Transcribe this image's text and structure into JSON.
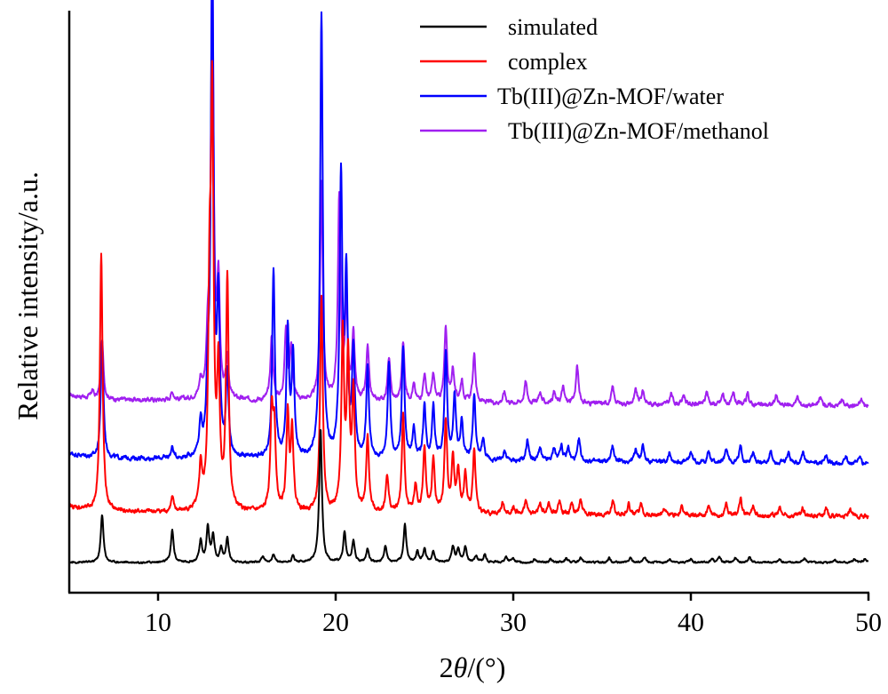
{
  "chart_data": {
    "type": "line",
    "title": "",
    "xlabel_prefix": "2",
    "xlabel_symbol": "θ",
    "xlabel_suffix": "/(°)",
    "ylabel": "Relative intensity/a.u.",
    "xlim": [
      5,
      50
    ],
    "ylim": [
      0,
      100
    ],
    "xticks": [
      10,
      20,
      30,
      40,
      50
    ],
    "grid": false,
    "legend_position": "top-right",
    "peak_width": 0.09,
    "series": [
      {
        "name": "simulated",
        "color": "#000000",
        "baseline": 0,
        "decay": 0,
        "noise": 0.25,
        "peaks": [
          [
            6.85,
            9.0
          ],
          [
            10.8,
            6.0
          ],
          [
            12.4,
            4.0
          ],
          [
            12.8,
            6.5
          ],
          [
            13.1,
            5.0
          ],
          [
            13.55,
            2.5
          ],
          [
            13.9,
            4.5
          ],
          [
            15.9,
            1.2
          ],
          [
            16.5,
            1.5
          ],
          [
            17.6,
            1.2
          ],
          [
            19.15,
            25.0
          ],
          [
            20.5,
            5.5
          ],
          [
            21.0,
            4.0
          ],
          [
            21.8,
            2.5
          ],
          [
            22.8,
            3.0
          ],
          [
            23.9,
            7.0
          ],
          [
            24.6,
            2.0
          ],
          [
            25.0,
            2.5
          ],
          [
            25.5,
            2.0
          ],
          [
            26.6,
            3.0
          ],
          [
            26.9,
            2.5
          ],
          [
            27.3,
            3.0
          ],
          [
            27.9,
            1.2
          ],
          [
            28.4,
            1.5
          ],
          [
            29.6,
            1.0
          ],
          [
            30.0,
            0.8
          ],
          [
            31.2,
            0.6
          ],
          [
            32.1,
            0.6
          ],
          [
            33.0,
            0.8
          ],
          [
            33.8,
            1.0
          ],
          [
            35.4,
            0.8
          ],
          [
            36.6,
            0.8
          ],
          [
            37.4,
            0.8
          ],
          [
            38.8,
            0.6
          ],
          [
            40.0,
            0.6
          ],
          [
            41.2,
            0.8
          ],
          [
            41.6,
            1.0
          ],
          [
            42.5,
            0.8
          ],
          [
            43.3,
            1.0
          ],
          [
            45.0,
            0.6
          ],
          [
            46.4,
            0.8
          ],
          [
            48.1,
            0.6
          ],
          [
            49.2,
            0.6
          ],
          [
            49.8,
            0.6
          ]
        ]
      },
      {
        "name": "complex",
        "color": "#ff0000",
        "baseline": 9.5,
        "decay": 0.9,
        "noise": 0.6,
        "peaks": [
          [
            6.8,
            48.0
          ],
          [
            10.8,
            2.5
          ],
          [
            12.4,
            8.0
          ],
          [
            12.9,
            35.0
          ],
          [
            13.05,
            73.0
          ],
          [
            13.4,
            25.0
          ],
          [
            13.9,
            43.0
          ],
          [
            16.4,
            18.0
          ],
          [
            16.55,
            14.0
          ],
          [
            17.3,
            18.0
          ],
          [
            17.55,
            15.0
          ],
          [
            19.2,
            40.0
          ],
          [
            20.4,
            33.0
          ],
          [
            20.7,
            28.0
          ],
          [
            21.0,
            22.0
          ],
          [
            21.8,
            14.0
          ],
          [
            22.9,
            7.0
          ],
          [
            23.8,
            18.0
          ],
          [
            24.5,
            5.0
          ],
          [
            25.0,
            12.0
          ],
          [
            25.5,
            10.0
          ],
          [
            26.2,
            17.0
          ],
          [
            26.6,
            10.0
          ],
          [
            26.9,
            8.0
          ],
          [
            27.3,
            7.0
          ],
          [
            27.8,
            12.0
          ],
          [
            29.4,
            2.0
          ],
          [
            30.0,
            1.5
          ],
          [
            30.7,
            2.5
          ],
          [
            31.5,
            2.0
          ],
          [
            32.0,
            2.0
          ],
          [
            32.6,
            2.5
          ],
          [
            33.3,
            2.0
          ],
          [
            33.8,
            3.0
          ],
          [
            35.6,
            2.5
          ],
          [
            36.5,
            2.0
          ],
          [
            37.2,
            2.0
          ],
          [
            38.5,
            1.5
          ],
          [
            39.5,
            1.5
          ],
          [
            41.0,
            1.5
          ],
          [
            42.0,
            2.0
          ],
          [
            42.8,
            3.0
          ],
          [
            43.5,
            2.0
          ],
          [
            45.0,
            1.5
          ],
          [
            46.3,
            1.5
          ],
          [
            47.6,
            1.5
          ],
          [
            49.0,
            1.2
          ]
        ]
      },
      {
        "name": "Tb(III)@Zn-MOF/water",
        "color": "#0000ff",
        "baseline": 19.5,
        "decay": 1.0,
        "noise": 0.6,
        "peaks": [
          [
            6.85,
            22.0
          ],
          [
            10.8,
            2.0
          ],
          [
            12.4,
            6.0
          ],
          [
            12.8,
            12.0
          ],
          [
            13.05,
            96.0
          ],
          [
            13.4,
            28.0
          ],
          [
            13.9,
            15.0
          ],
          [
            16.5,
            35.0
          ],
          [
            17.3,
            24.0
          ],
          [
            17.6,
            19.0
          ],
          [
            19.2,
            83.0
          ],
          [
            20.3,
            52.0
          ],
          [
            20.6,
            33.0
          ],
          [
            21.0,
            20.0
          ],
          [
            21.8,
            17.0
          ],
          [
            23.0,
            18.0
          ],
          [
            23.8,
            21.0
          ],
          [
            24.4,
            6.0
          ],
          [
            25.0,
            10.0
          ],
          [
            25.5,
            10.0
          ],
          [
            26.2,
            20.0
          ],
          [
            26.7,
            12.0
          ],
          [
            27.1,
            7.0
          ],
          [
            27.8,
            12.0
          ],
          [
            28.3,
            4.0
          ],
          [
            29.5,
            2.0
          ],
          [
            30.8,
            4.0
          ],
          [
            31.5,
            2.5
          ],
          [
            32.3,
            2.5
          ],
          [
            32.7,
            3.0
          ],
          [
            33.1,
            2.5
          ],
          [
            33.7,
            4.0
          ],
          [
            35.6,
            3.0
          ],
          [
            36.9,
            2.5
          ],
          [
            37.3,
            3.0
          ],
          [
            38.8,
            2.0
          ],
          [
            40.0,
            2.0
          ],
          [
            41.0,
            2.0
          ],
          [
            42.0,
            2.5
          ],
          [
            42.8,
            3.0
          ],
          [
            43.5,
            2.0
          ],
          [
            44.5,
            2.0
          ],
          [
            45.5,
            2.0
          ],
          [
            46.3,
            2.0
          ],
          [
            47.6,
            1.5
          ],
          [
            48.7,
            1.5
          ],
          [
            49.5,
            1.2
          ]
        ]
      },
      {
        "name": "Tb(III)@Zn-MOF/methanol",
        "color": "#a020f0",
        "baseline": 30.5,
        "decay": 1.2,
        "noise": 0.6,
        "peaks": [
          [
            6.3,
            1.5
          ],
          [
            6.85,
            11.0
          ],
          [
            10.8,
            1.5
          ],
          [
            12.4,
            3.0
          ],
          [
            12.8,
            9.0
          ],
          [
            13.05,
            81.0
          ],
          [
            13.4,
            21.0
          ],
          [
            13.9,
            7.0
          ],
          [
            16.4,
            12.0
          ],
          [
            17.2,
            13.0
          ],
          [
            17.5,
            10.0
          ],
          [
            19.2,
            41.0
          ],
          [
            20.2,
            38.0
          ],
          [
            20.6,
            18.0
          ],
          [
            21.0,
            12.0
          ],
          [
            21.8,
            10.0
          ],
          [
            23.0,
            8.0
          ],
          [
            23.8,
            11.0
          ],
          [
            24.4,
            3.0
          ],
          [
            25.0,
            5.0
          ],
          [
            25.5,
            5.0
          ],
          [
            26.2,
            14.0
          ],
          [
            26.6,
            6.0
          ],
          [
            27.1,
            4.0
          ],
          [
            27.8,
            9.0
          ],
          [
            29.5,
            2.0
          ],
          [
            30.7,
            4.0
          ],
          [
            31.5,
            2.0
          ],
          [
            32.3,
            2.0
          ],
          [
            32.8,
            3.0
          ],
          [
            33.6,
            7.0
          ],
          [
            35.6,
            3.0
          ],
          [
            36.9,
            2.5
          ],
          [
            37.3,
            2.5
          ],
          [
            38.9,
            2.0
          ],
          [
            39.6,
            1.8
          ],
          [
            40.9,
            2.5
          ],
          [
            41.8,
            2.0
          ],
          [
            42.4,
            2.0
          ],
          [
            43.2,
            2.0
          ],
          [
            44.8,
            1.8
          ],
          [
            46.0,
            1.5
          ],
          [
            47.3,
            1.5
          ],
          [
            48.5,
            1.2
          ],
          [
            49.6,
            1.2
          ]
        ]
      }
    ]
  }
}
